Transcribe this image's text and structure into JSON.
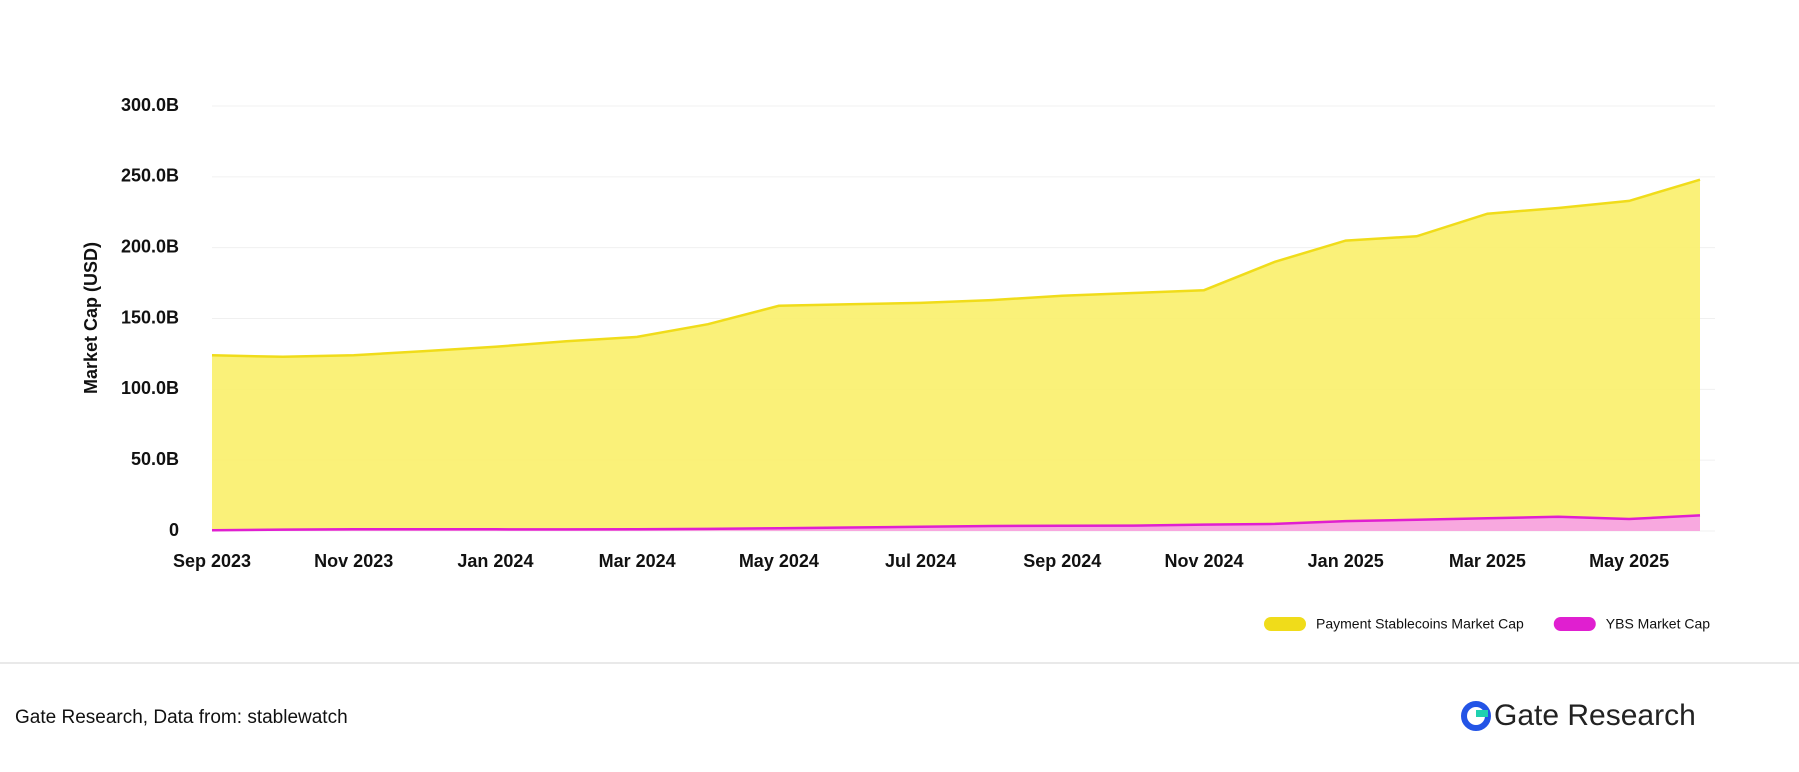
{
  "chart_data": {
    "type": "area",
    "y_label": "Market Cap (USD)",
    "x": [
      "2023-09",
      "2023-10",
      "2023-11",
      "2023-12",
      "2024-01",
      "2024-02",
      "2024-03",
      "2024-04",
      "2024-05",
      "2024-06",
      "2024-07",
      "2024-08",
      "2024-09",
      "2024-10",
      "2024-11",
      "2024-12",
      "2025-01",
      "2025-02",
      "2025-03",
      "2025-04",
      "2025-05",
      "2025-06"
    ],
    "series": [
      {
        "name": "Payment Stablecoins Market Cap",
        "color": "#f0dc1a",
        "values": [
          124,
          123,
          124,
          127,
          130,
          134,
          137,
          146,
          159,
          160,
          161,
          163,
          166,
          168,
          170,
          190,
          205,
          208,
          224,
          228,
          233,
          248
        ]
      },
      {
        "name": "YBS Market Cap",
        "color": "#e01fd0",
        "values": [
          0.5,
          1,
          1.3,
          1.3,
          1.2,
          1.1,
          1.2,
          1.5,
          2,
          2.5,
          3,
          3.5,
          3.7,
          3.8,
          4.5,
          5,
          7,
          8,
          9,
          10,
          8.5,
          11
        ]
      }
    ],
    "xlim": [
      "2023-09",
      "2025-06"
    ],
    "xticks": [
      {
        "value": "2023-09",
        "label": "Sep 2023"
      },
      {
        "value": "2023-11",
        "label": "Nov 2023"
      },
      {
        "value": "2024-01",
        "label": "Jan 2024"
      },
      {
        "value": "2024-03",
        "label": "Mar 2024"
      },
      {
        "value": "2024-05",
        "label": "May 2024"
      },
      {
        "value": "2024-07",
        "label": "Jul 2024"
      },
      {
        "value": "2024-09",
        "label": "Sep 2024"
      },
      {
        "value": "2024-11",
        "label": "Nov 2024"
      },
      {
        "value": "2025-01",
        "label": "Jan 2025"
      },
      {
        "value": "2025-03",
        "label": "Mar 2025"
      },
      {
        "value": "2025-05",
        "label": "May 2025"
      }
    ],
    "ylim": [
      0,
      300
    ],
    "yticks": [
      0,
      {
        "value": 50,
        "label": "50.0B"
      },
      {
        "value": 100,
        "label": "100.0B"
      },
      {
        "value": 150,
        "label": "150.0B"
      },
      {
        "value": 200,
        "label": "200.0B"
      },
      {
        "value": 250,
        "label": "250.0B"
      },
      {
        "value": 300,
        "label": "300.0B"
      }
    ],
    "grid": true,
    "legend": "bottom-right"
  },
  "footer": {
    "source": "Gate Research, Data from: stablewatch",
    "logo": "Gate Research"
  }
}
